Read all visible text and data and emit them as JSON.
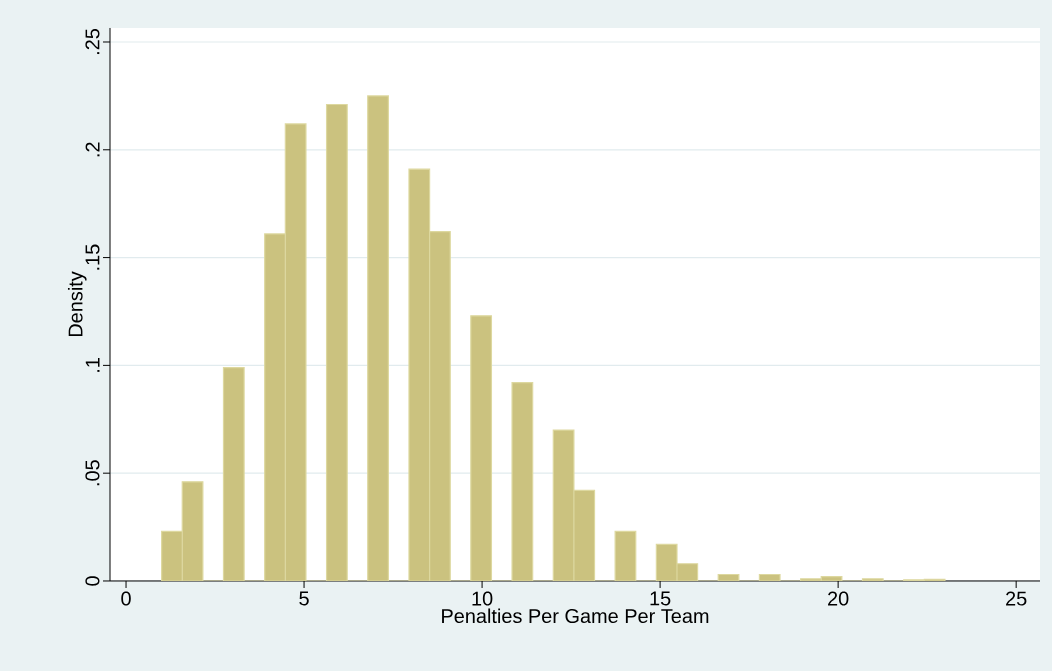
{
  "chart_data": {
    "type": "histogram",
    "xlabel": "Penalties Per Game Per Team",
    "ylabel": "Density",
    "color": "#cbc27f",
    "bins": [
      1,
      1.579,
      2.158,
      2.737,
      3.316,
      3.895,
      4.474,
      5.053,
      5.632,
      6.211,
      6.789,
      7.368,
      7.947,
      8.526,
      9.105,
      9.684,
      10.263,
      10.842,
      11.421,
      12,
      12.579,
      13.158,
      13.737,
      14.316,
      14.895,
      15.474,
      16.053,
      16.632,
      17.211,
      17.789,
      18.368,
      18.947,
      19.526,
      20.105,
      20.684,
      21.263,
      21.842,
      22.421,
      23
    ],
    "values": [
      0.023,
      0.046,
      0,
      0.099,
      0,
      0.161,
      0.212,
      0,
      0.221,
      0,
      0.225,
      0,
      0.191,
      0.162,
      0,
      0.123,
      0,
      0.092,
      0,
      0.07,
      0.042,
      0,
      0.023,
      0,
      0.017,
      0.008,
      0,
      0.003,
      0,
      0.003,
      0,
      0.001,
      0.002,
      0,
      0.001,
      0,
      0.0005,
      0.0008
    ],
    "xlim": [
      -0.45,
      25.67
    ],
    "ylim": [
      0,
      0.2565
    ],
    "xticks": [
      0,
      5,
      10,
      15,
      20,
      25
    ],
    "yticks": [
      {
        "value": 0,
        "label": "0"
      },
      {
        "value": 0.05,
        "label": ".05"
      },
      {
        "value": 0.1,
        "label": ".1"
      },
      {
        "value": 0.15,
        "label": ".15"
      },
      {
        "value": 0.2,
        "label": ".2"
      },
      {
        "value": 0.25,
        "label": ".25"
      }
    ],
    "grid": "y"
  }
}
